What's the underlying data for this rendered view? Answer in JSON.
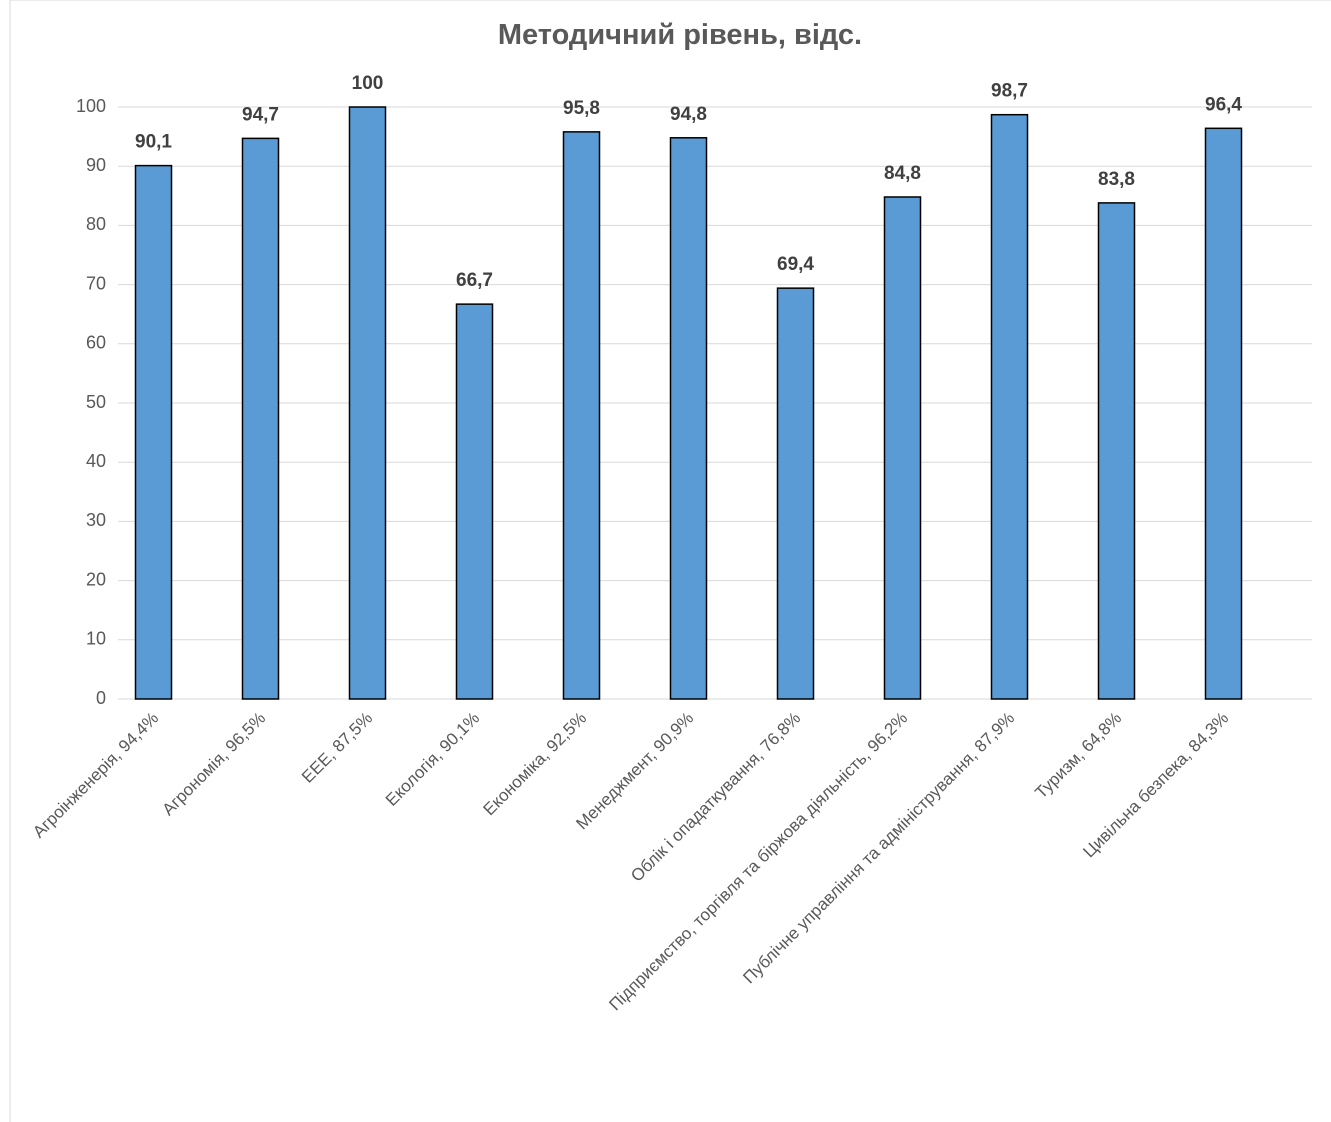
{
  "chart_data": {
    "type": "bar",
    "title": "Методичний рівень, відс.",
    "categories": [
      "Агроінженерія, 94,4%",
      "Агрономія, 96,5%",
      "ЕЕЕ, 87,5%",
      "Екологія, 90,1%",
      "Економіка, 92,5%",
      "Менеджмент, 90,9%",
      "Облік і опадаткування, 76,8%",
      "Підприємство, торгівля та біржова діяльність, 96,2%",
      "Публічне управління та адміністрування, 87,9%",
      "Туризм, 64,8%",
      "Цивільна безпека, 84,3%"
    ],
    "values": [
      90.1,
      94.7,
      100,
      66.7,
      95.8,
      94.8,
      69.4,
      84.8,
      98.7,
      83.8,
      96.4
    ],
    "value_labels": [
      "90,1",
      "94,7",
      "100",
      "66,7",
      "95,8",
      "94,8",
      "69,4",
      "84,8",
      "98,7",
      "83,8",
      "96,4"
    ],
    "color": "#5b9bd5",
    "ylim": [
      0,
      100
    ],
    "yticks": [
      0,
      10,
      20,
      30,
      40,
      50,
      60,
      70,
      80,
      90,
      100
    ],
    "grid": true
  }
}
